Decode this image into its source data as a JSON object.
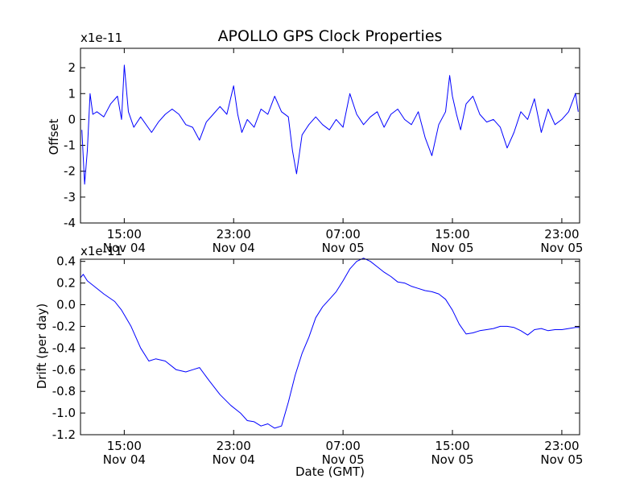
{
  "chart_data": [
    {
      "type": "line",
      "title": "APOLLO GPS Clock Properties",
      "xlabel": "",
      "ylabel": "Offset",
      "y_multiplier": "x1e-11",
      "ylim": [
        -4,
        2.75
      ],
      "yticks": [
        -4,
        -3,
        -2,
        -1,
        0,
        1,
        2
      ],
      "xlim": [
        11.8,
        48.3
      ],
      "xticks": [
        {
          "hour": 15,
          "line1": "15:00",
          "line2": "Nov 04"
        },
        {
          "hour": 23,
          "line1": "23:00",
          "line2": "Nov 04"
        },
        {
          "hour": 31,
          "line1": "07:00",
          "line2": "Nov 05"
        },
        {
          "hour": 39,
          "line1": "15:00",
          "line2": "Nov 05"
        },
        {
          "hour": 47,
          "line1": "23:00",
          "line2": "Nov 05"
        }
      ],
      "series": [
        {
          "color": "#0000ff",
          "x": [
            11.9,
            12.1,
            12.3,
            12.5,
            12.7,
            13.0,
            13.5,
            14.0,
            14.5,
            14.8,
            15.0,
            15.3,
            15.7,
            16.2,
            17.0,
            17.5,
            18.0,
            18.5,
            19.0,
            19.5,
            20.0,
            20.5,
            21.0,
            21.5,
            22.0,
            22.5,
            23.0,
            23.3,
            23.6,
            24.0,
            24.5,
            25.0,
            25.5,
            26.0,
            26.5,
            27.0,
            27.3,
            27.6,
            28.0,
            28.5,
            29.0,
            29.5,
            30.0,
            30.5,
            31.0,
            31.5,
            32.0,
            32.5,
            33.0,
            33.5,
            34.0,
            34.5,
            35.0,
            35.5,
            36.0,
            36.5,
            37.0,
            37.5,
            38.0,
            38.5,
            38.8,
            39.0,
            39.3,
            39.6,
            40.0,
            40.5,
            41.0,
            41.5,
            42.0,
            42.5,
            43.0,
            43.5,
            44.0,
            44.5,
            45.0,
            45.5,
            46.0,
            46.5,
            47.0,
            47.5,
            48.0,
            48.2
          ],
          "y": [
            -0.4,
            -2.5,
            -1.2,
            1.0,
            0.2,
            0.3,
            0.1,
            0.6,
            0.9,
            0.0,
            2.1,
            0.3,
            -0.3,
            0.1,
            -0.5,
            -0.1,
            0.2,
            0.4,
            0.2,
            -0.2,
            -0.3,
            -0.8,
            -0.1,
            0.2,
            0.5,
            0.2,
            1.3,
            0.2,
            -0.5,
            0.0,
            -0.3,
            0.4,
            0.2,
            0.9,
            0.3,
            0.1,
            -1.2,
            -2.1,
            -0.6,
            -0.2,
            0.1,
            -0.2,
            -0.4,
            0.0,
            -0.3,
            1.0,
            0.2,
            -0.2,
            0.1,
            0.3,
            -0.3,
            0.2,
            0.4,
            0.0,
            -0.2,
            0.3,
            -0.7,
            -1.4,
            -0.2,
            0.3,
            1.7,
            0.9,
            0.2,
            -0.4,
            0.6,
            0.9,
            0.2,
            -0.1,
            0.0,
            -0.3,
            -1.1,
            -0.5,
            0.3,
            0.0,
            0.8,
            -0.5,
            0.4,
            -0.2,
            0.0,
            0.3,
            1.0,
            0.3
          ]
        }
      ]
    },
    {
      "type": "line",
      "title": "",
      "xlabel": "Date (GMT)",
      "ylabel": "Drift (per day)",
      "y_multiplier": "x1e-11",
      "ylim": [
        -1.2,
        0.42
      ],
      "yticks": [
        {
          "value": -1.2,
          "label": "-1.2"
        },
        {
          "value": -1.0,
          "label": "-1.0"
        },
        {
          "value": -0.8,
          "label": "-0.8"
        },
        {
          "value": -0.6,
          "label": "-0.6"
        },
        {
          "value": -0.4,
          "label": "-0.4"
        },
        {
          "value": -0.2,
          "label": "-0.2"
        },
        {
          "value": 0.0,
          "label": "0.0"
        },
        {
          "value": 0.2,
          "label": "0.2"
        },
        {
          "value": 0.4,
          "label": "0.4"
        }
      ],
      "xlim": [
        11.8,
        48.3
      ],
      "xticks": [
        {
          "hour": 15,
          "line1": "15:00",
          "line2": "Nov 04"
        },
        {
          "hour": 23,
          "line1": "23:00",
          "line2": "Nov 04"
        },
        {
          "hour": 31,
          "line1": "07:00",
          "line2": "Nov 05"
        },
        {
          "hour": 39,
          "line1": "15:00",
          "line2": "Nov 05"
        },
        {
          "hour": 47,
          "line1": "23:00",
          "line2": "Nov 05"
        }
      ],
      "series": [
        {
          "color": "#0000ff",
          "x": [
            11.8,
            12.0,
            12.3,
            12.8,
            13.5,
            14.3,
            14.8,
            15.5,
            16.2,
            16.8,
            17.3,
            18.0,
            18.8,
            19.5,
            20.0,
            20.5,
            21.2,
            22.0,
            22.8,
            23.5,
            24.0,
            24.5,
            25.0,
            25.5,
            26.0,
            26.5,
            27.0,
            27.5,
            28.0,
            28.5,
            29.0,
            29.5,
            30.0,
            30.5,
            31.0,
            31.5,
            32.0,
            32.5,
            33.0,
            33.5,
            34.0,
            34.5,
            35.0,
            35.5,
            36.0,
            36.5,
            37.0,
            37.5,
            38.0,
            38.5,
            39.0,
            39.5,
            40.0,
            40.5,
            41.0,
            41.5,
            42.0,
            42.5,
            43.0,
            43.5,
            44.0,
            44.5,
            45.0,
            45.5,
            46.0,
            46.5,
            47.0,
            47.5,
            48.0,
            48.3
          ],
          "y": [
            0.25,
            0.28,
            0.22,
            0.17,
            0.1,
            0.03,
            -0.05,
            -0.2,
            -0.4,
            -0.52,
            -0.5,
            -0.52,
            -0.6,
            -0.62,
            -0.6,
            -0.58,
            -0.7,
            -0.83,
            -0.93,
            -1.0,
            -1.07,
            -1.08,
            -1.12,
            -1.1,
            -1.14,
            -1.12,
            -0.9,
            -0.65,
            -0.45,
            -0.3,
            -0.12,
            -0.02,
            0.05,
            0.12,
            0.22,
            0.33,
            0.4,
            0.43,
            0.4,
            0.35,
            0.3,
            0.26,
            0.21,
            0.2,
            0.17,
            0.15,
            0.13,
            0.12,
            0.1,
            0.05,
            -0.05,
            -0.18,
            -0.27,
            -0.26,
            -0.24,
            -0.23,
            -0.22,
            -0.2,
            -0.2,
            -0.21,
            -0.24,
            -0.28,
            -0.23,
            -0.22,
            -0.24,
            -0.23,
            -0.23,
            -0.22,
            -0.21,
            -0.21
          ]
        }
      ]
    }
  ]
}
